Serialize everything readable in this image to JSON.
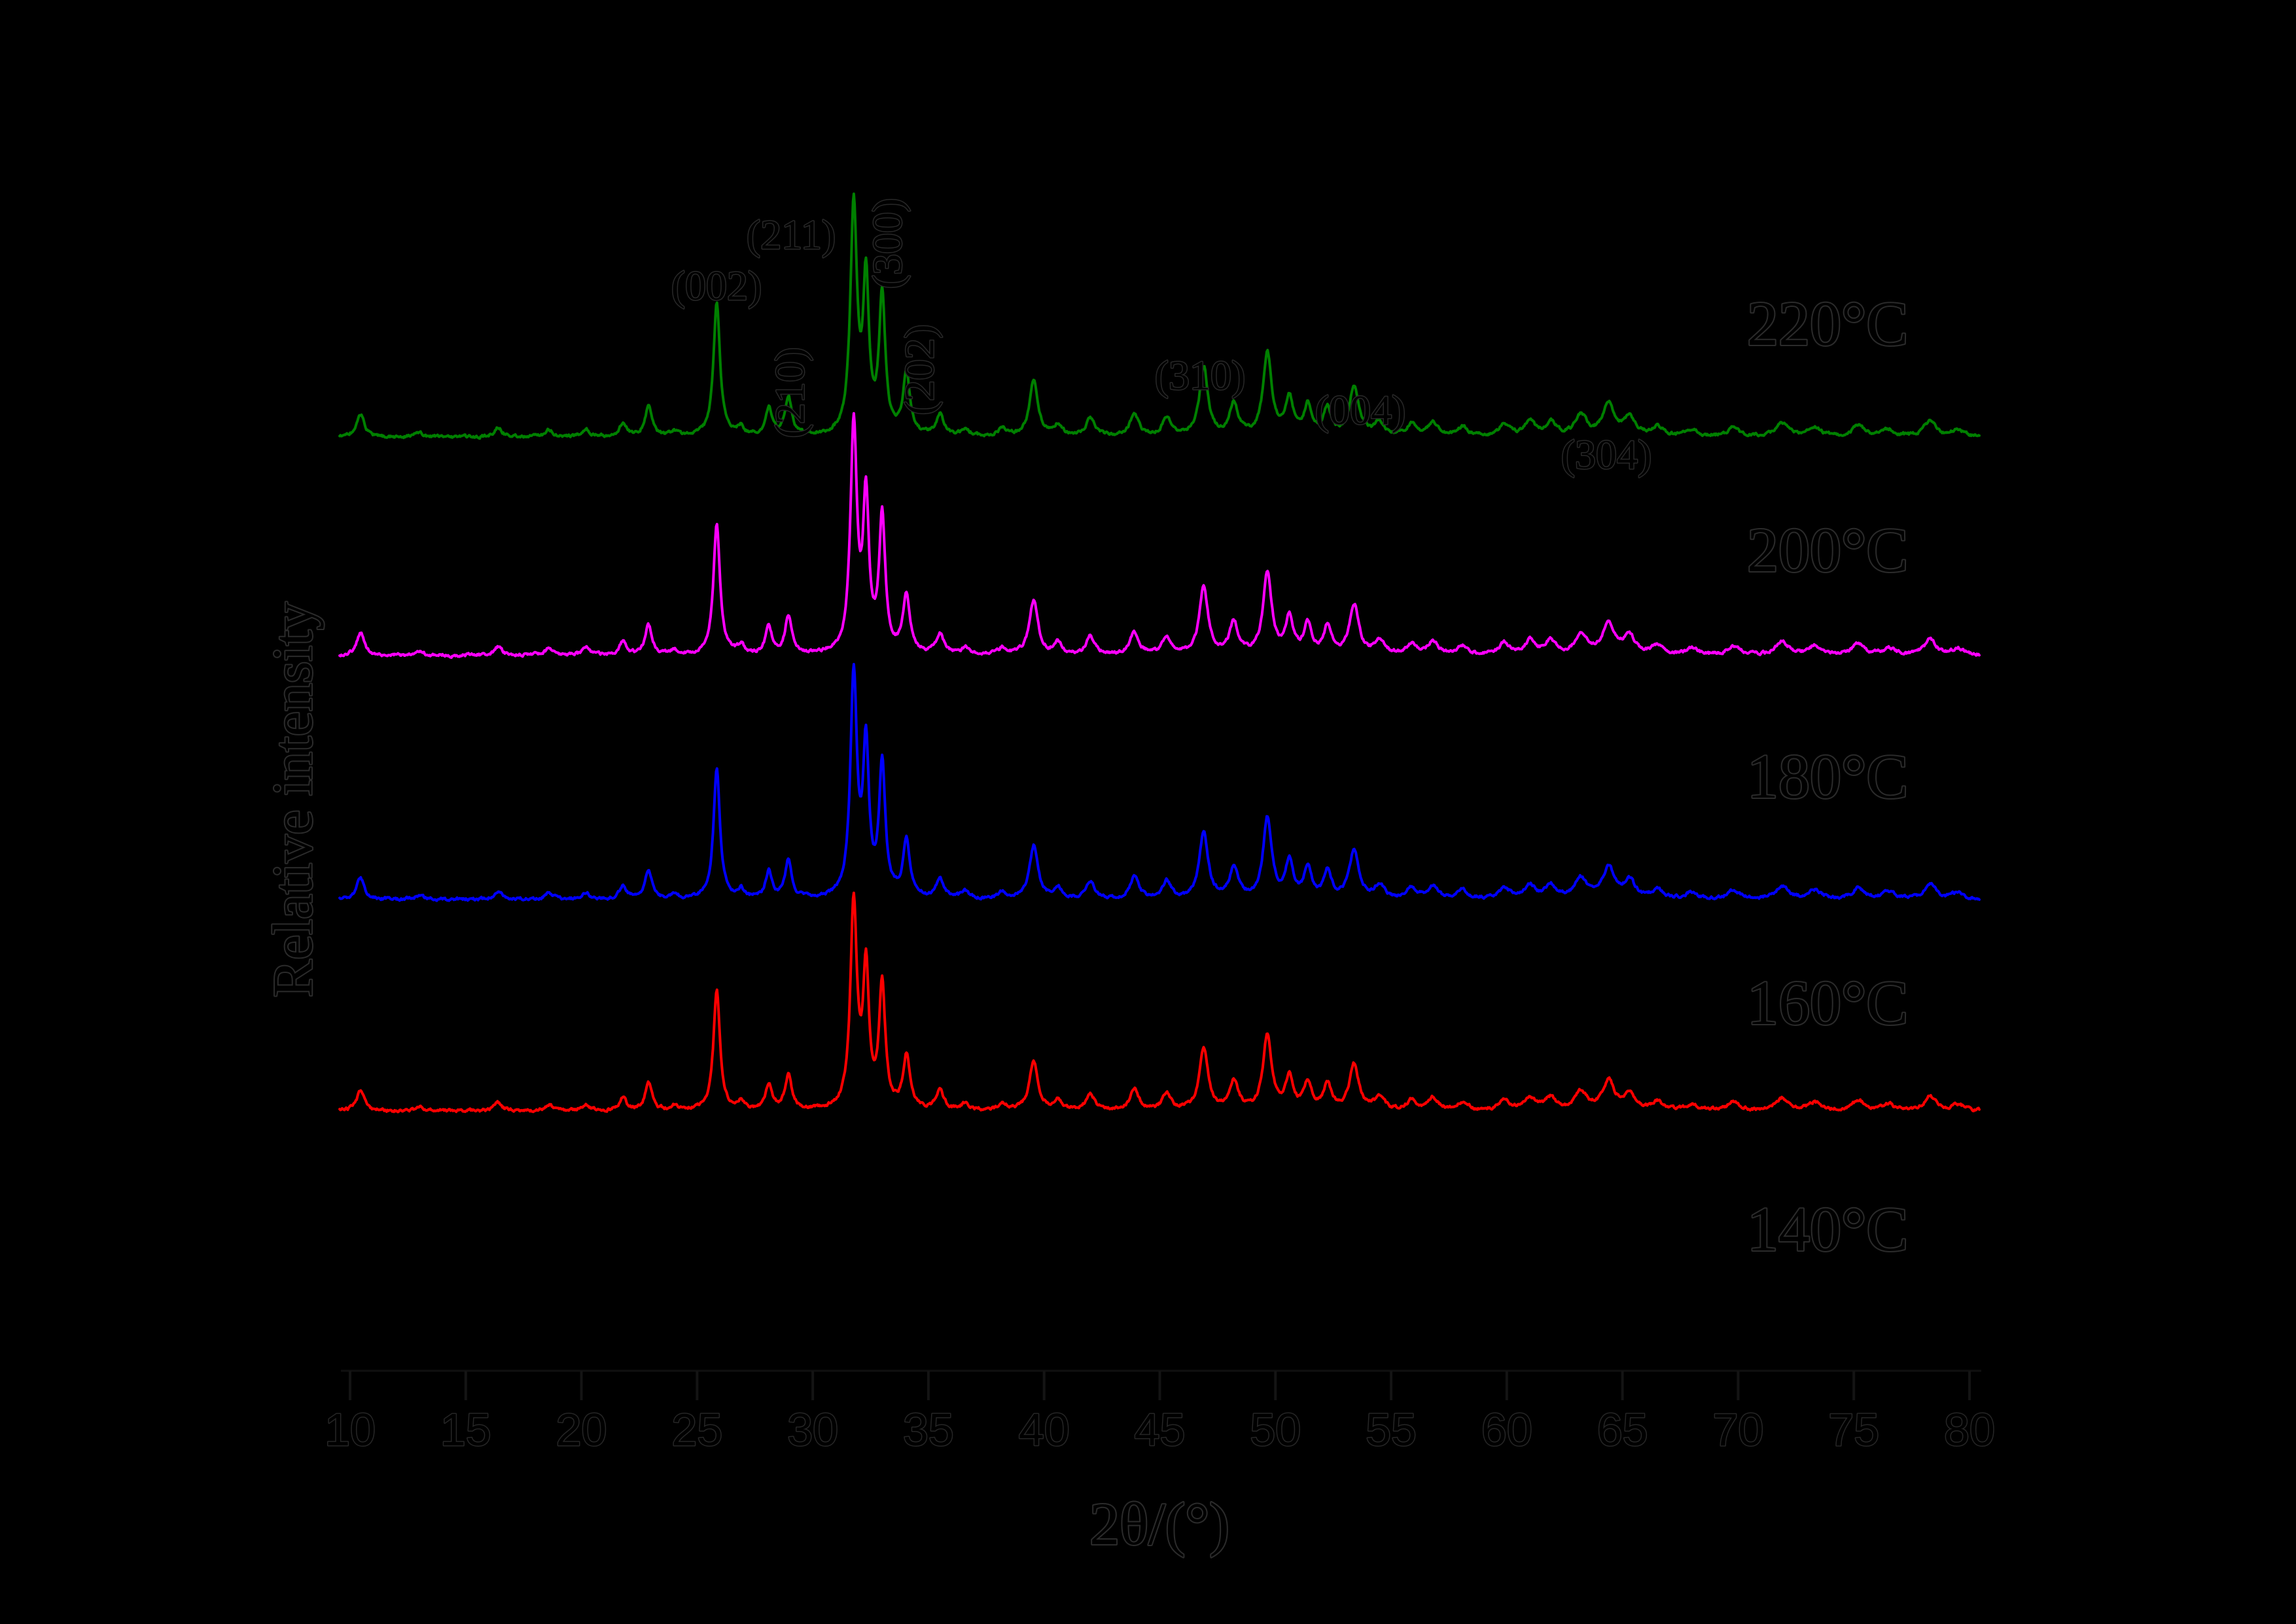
{
  "page": {
    "background": "#000000",
    "text_color": "#000000",
    "text_outline_color": "#282828"
  },
  "chart_data": {
    "type": "line",
    "title": "",
    "xlabel": "2θ/(°)",
    "ylabel": "Relative intensity",
    "x_range": [
      10,
      80
    ],
    "x_tick_step": 5,
    "x_ticks": [
      10,
      15,
      20,
      25,
      30,
      35,
      40,
      45,
      50,
      55,
      60,
      65,
      70,
      75,
      80
    ],
    "grid": false,
    "y_axis_ticks": "none (stacked relative-intensity XRD patterns)",
    "series": [
      {
        "name": "220°C",
        "color": "#008000",
        "scale": 1.0
      },
      {
        "name": "200°C",
        "color": "#FF00FF",
        "scale": 0.99
      },
      {
        "name": "180°C",
        "color": "#0000FF",
        "scale": 0.97
      },
      {
        "name": "160°C",
        "color": "#FF0000",
        "scale": 0.9
      },
      {
        "name": "140°C",
        "color": "#000000",
        "scale": 0.95
      }
    ],
    "peaks_shared_2theta_relint_hwhm": [
      [
        10.45,
        0.1,
        0.2
      ],
      [
        13.0,
        0.02,
        0.2
      ],
      [
        16.4,
        0.04,
        0.2
      ],
      [
        18.6,
        0.03,
        0.2
      ],
      [
        20.2,
        0.03,
        0.2
      ],
      [
        21.8,
        0.06,
        0.18
      ],
      [
        22.9,
        0.13,
        0.18
      ],
      [
        24.0,
        0.02,
        0.18
      ],
      [
        25.85,
        0.58,
        0.17
      ],
      [
        26.9,
        0.04,
        0.15
      ],
      [
        28.1,
        0.12,
        0.17
      ],
      [
        28.95,
        0.17,
        0.17
      ],
      [
        31.77,
        1.0,
        0.17
      ],
      [
        32.3,
        0.66,
        0.15
      ],
      [
        33.0,
        0.6,
        0.16
      ],
      [
        34.05,
        0.26,
        0.18
      ],
      [
        35.5,
        0.09,
        0.2
      ],
      [
        36.6,
        0.03,
        0.2
      ],
      [
        38.2,
        0.03,
        0.2
      ],
      [
        39.55,
        0.24,
        0.22
      ],
      [
        40.6,
        0.05,
        0.2
      ],
      [
        42.0,
        0.08,
        0.22
      ],
      [
        43.9,
        0.1,
        0.22
      ],
      [
        45.3,
        0.08,
        0.22
      ],
      [
        46.9,
        0.3,
        0.22
      ],
      [
        48.2,
        0.14,
        0.22
      ],
      [
        49.65,
        0.36,
        0.22
      ],
      [
        50.6,
        0.16,
        0.2
      ],
      [
        51.4,
        0.13,
        0.2
      ],
      [
        52.25,
        0.12,
        0.2
      ],
      [
        53.4,
        0.22,
        0.24
      ],
      [
        54.5,
        0.06,
        0.25
      ],
      [
        55.9,
        0.05,
        0.25
      ],
      [
        56.8,
        0.06,
        0.25
      ],
      [
        58.1,
        0.04,
        0.25
      ],
      [
        59.9,
        0.05,
        0.28
      ],
      [
        61.0,
        0.06,
        0.28
      ],
      [
        61.9,
        0.06,
        0.28
      ],
      [
        63.2,
        0.09,
        0.3
      ],
      [
        64.4,
        0.14,
        0.3
      ],
      [
        65.3,
        0.08,
        0.3
      ],
      [
        66.5,
        0.04,
        0.3
      ],
      [
        68.0,
        0.03,
        0.3
      ],
      [
        69.8,
        0.04,
        0.3
      ],
      [
        71.9,
        0.06,
        0.32
      ],
      [
        73.3,
        0.04,
        0.32
      ],
      [
        75.2,
        0.05,
        0.32
      ],
      [
        76.5,
        0.03,
        0.32
      ],
      [
        78.3,
        0.07,
        0.3
      ],
      [
        79.5,
        0.03,
        0.3
      ]
    ],
    "annotations": [
      {
        "text": "(002)",
        "approx_2theta": 25.9,
        "orientation": "horizontal"
      },
      {
        "text": "(211)",
        "approx_2theta": 31.8,
        "orientation": "horizontal"
      },
      {
        "text": "(210)",
        "approx_2theta": 29.0,
        "orientation": "vertical"
      },
      {
        "text": "(300)",
        "approx_2theta": 33.0,
        "orientation": "vertical"
      },
      {
        "text": "(202)",
        "approx_2theta": 34.0,
        "orientation": "vertical"
      },
      {
        "text": "(310)",
        "approx_2theta": 46.7,
        "orientation": "horizontal"
      },
      {
        "text": "(004)",
        "approx_2theta": 53.2,
        "orientation": "horizontal"
      },
      {
        "text": "(304)",
        "approx_2theta": 64.1,
        "orientation": "horizontal"
      }
    ]
  }
}
